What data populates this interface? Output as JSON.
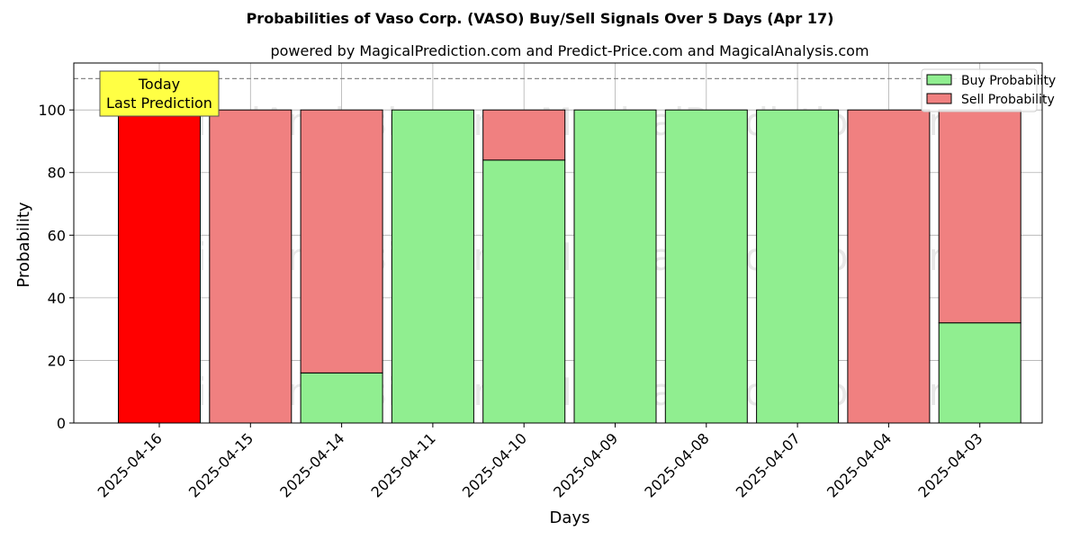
{
  "chart_data": {
    "type": "bar",
    "stacked": true,
    "title": "Probabilities of Vaso Corp. (VASO) Buy/Sell Signals Over 5 Days (Apr 17)",
    "subtitle": "powered by MagicalPrediction.com and Predict-Price.com and MagicalAnalysis.com",
    "xlabel": "Days",
    "ylabel": "Probability",
    "ylim": [
      0,
      115
    ],
    "yticks": [
      0,
      20,
      40,
      60,
      80,
      100
    ],
    "grid": true,
    "legend_position": "top-right",
    "reference_line": 110,
    "categories": [
      "2025-04-16",
      "2025-04-15",
      "2025-04-14",
      "2025-04-11",
      "2025-04-10",
      "2025-04-09",
      "2025-04-08",
      "2025-04-07",
      "2025-04-04",
      "2025-04-03"
    ],
    "series": [
      {
        "name": "Buy Probability",
        "color": "#90ee90",
        "values": [
          0,
          0,
          16,
          100,
          84,
          100,
          100,
          100,
          0,
          32
        ]
      },
      {
        "name": "Sell Probability",
        "color": "#f08080",
        "values": [
          100,
          100,
          84,
          0,
          16,
          0,
          0,
          0,
          100,
          68
        ]
      }
    ],
    "highlight": {
      "index": 0,
      "color": "#ff0000"
    },
    "annotation": {
      "lines": [
        "Today",
        "Last Prediction"
      ],
      "color": "#ffff44"
    },
    "watermarks": [
      "MagicalAnalysis.com",
      "MagicalPrediction.com"
    ]
  }
}
